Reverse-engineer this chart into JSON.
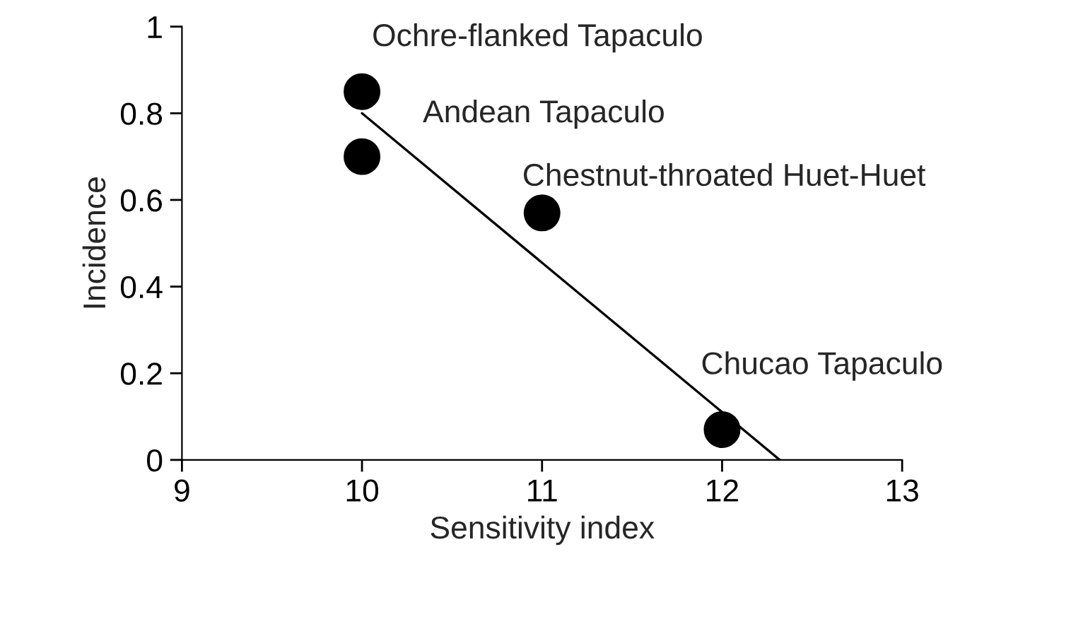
{
  "chart_data": {
    "type": "scatter",
    "xlabel": "Sensitivity index",
    "ylabel": "Incidence",
    "series": [
      {
        "color": "#000000",
        "marker": "circle",
        "x": [
          10,
          10,
          11,
          12
        ],
        "values": [
          0.85,
          0.7,
          0.57,
          0.07
        ]
      },
      {
        "type": "line",
        "color": "#000000",
        "marker": "none",
        "line_style": "solid",
        "x": [
          10,
          12.32
        ],
        "values": [
          0.8,
          0
        ]
      }
    ],
    "annotations": [
      {
        "text": "Ochre-flanked Tapaculo",
        "x": 10,
        "y": 0.85
      },
      {
        "text": "Andean Tapaculo",
        "x": 10,
        "y": 0.7
      },
      {
        "text": "Chestnut-throated Huet-Huet",
        "x": 11,
        "y": 0.57
      },
      {
        "text": "Chucao Tapaculo",
        "x": 12,
        "y": 0.07
      }
    ],
    "xlim": [
      9,
      13
    ],
    "xticks": [
      9,
      10,
      11,
      12,
      13
    ],
    "ylim": [
      0,
      1
    ],
    "yticks": [
      0,
      0.2,
      0.4,
      0.6,
      0.8,
      1
    ],
    "grid": false,
    "legend": false
  }
}
